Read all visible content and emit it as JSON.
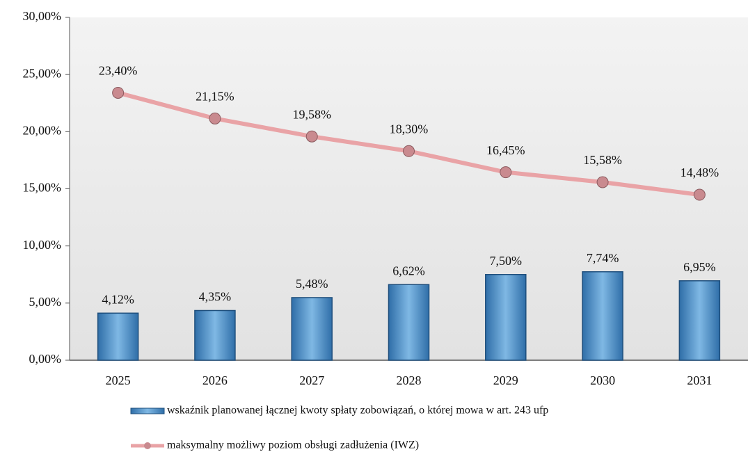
{
  "chart_data": {
    "type": "combo",
    "categories": [
      "2025",
      "2026",
      "2027",
      "2028",
      "2029",
      "2030",
      "2031"
    ],
    "series": [
      {
        "name": "wskaźnik planowanej łącznej kwoty spłaty zobowiązań, o której mowa w art. 243 ufp",
        "type": "bar",
        "color": "#4a92cc",
        "values": [
          4.12,
          4.35,
          5.48,
          6.62,
          7.5,
          7.74,
          6.95
        ],
        "value_labels": [
          "4,12%",
          "4,35%",
          "5,48%",
          "6,62%",
          "7,50%",
          "7,74%",
          "6,95%"
        ]
      },
      {
        "name": "maksymalny możliwy poziom obsługi zadłużenia (IWZ)",
        "type": "line",
        "color": "#e9a3a6",
        "marker_color": "#c98a8f",
        "values": [
          23.4,
          21.15,
          19.58,
          18.3,
          16.45,
          15.58,
          14.48
        ],
        "value_labels": [
          "23,40%",
          "21,15%",
          "19,58%",
          "18,30%",
          "16,45%",
          "15,58%",
          "14,48%"
        ]
      }
    ],
    "ylim": [
      0,
      30
    ],
    "yticks": [
      {
        "value": 0,
        "label": "0,00%"
      },
      {
        "value": 5,
        "label": "5,00%"
      },
      {
        "value": 10,
        "label": "10,00%"
      },
      {
        "value": 15,
        "label": "15,00%"
      },
      {
        "value": 20,
        "label": "20,00%"
      },
      {
        "value": 25,
        "label": "25,00%"
      },
      {
        "value": 30,
        "label": "30,00%"
      }
    ],
    "legend": "bottom"
  }
}
